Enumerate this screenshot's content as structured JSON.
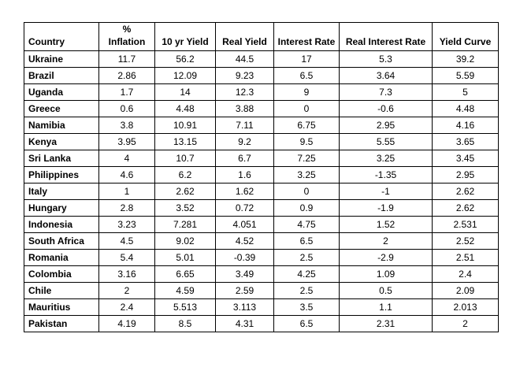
{
  "accent_colors": {
    "border": "#000000",
    "text": "#000000",
    "background": "#ffffff"
  },
  "table": {
    "headers": [
      "Country",
      "%\nInflation",
      "10 yr Yield",
      "Real Yield",
      "Interest Rate",
      "Real Interest Rate",
      "Yield Curve"
    ]
  },
  "chart_data": {
    "type": "table",
    "columns": [
      "Country",
      "% Inflation",
      "10 yr Yield",
      "Real Yield",
      "Interest Rate",
      "Real Interest Rate",
      "Yield Curve"
    ],
    "rows": [
      [
        "Ukraine",
        "11.7",
        "56.2",
        "44.5",
        "17",
        "5.3",
        "39.2"
      ],
      [
        "Brazil",
        "2.86",
        "12.09",
        "9.23",
        "6.5",
        "3.64",
        "5.59"
      ],
      [
        "Uganda",
        "1.7",
        "14",
        "12.3",
        "9",
        "7.3",
        "5"
      ],
      [
        "Greece",
        "0.6",
        "4.48",
        "3.88",
        "0",
        "-0.6",
        "4.48"
      ],
      [
        "Namibia",
        "3.8",
        "10.91",
        "7.11",
        "6.75",
        "2.95",
        "4.16"
      ],
      [
        "Kenya",
        "3.95",
        "13.15",
        "9.2",
        "9.5",
        "5.55",
        "3.65"
      ],
      [
        "Sri Lanka",
        "4",
        "10.7",
        "6.7",
        "7.25",
        "3.25",
        "3.45"
      ],
      [
        "Philippines",
        "4.6",
        "6.2",
        "1.6",
        "3.25",
        "-1.35",
        "2.95"
      ],
      [
        "Italy",
        "1",
        "2.62",
        "1.62",
        "0",
        "-1",
        "2.62"
      ],
      [
        "Hungary",
        "2.8",
        "3.52",
        "0.72",
        "0.9",
        "-1.9",
        "2.62"
      ],
      [
        "Indonesia",
        "3.23",
        "7.281",
        "4.051",
        "4.75",
        "1.52",
        "2.531"
      ],
      [
        "South Africa",
        "4.5",
        "9.02",
        "4.52",
        "6.5",
        "2",
        "2.52"
      ],
      [
        "Romania",
        "5.4",
        "5.01",
        "-0.39",
        "2.5",
        "-2.9",
        "2.51"
      ],
      [
        "Colombia",
        "3.16",
        "6.65",
        "3.49",
        "4.25",
        "1.09",
        "2.4"
      ],
      [
        "Chile",
        "2",
        "4.59",
        "2.59",
        "2.5",
        "0.5",
        "2.09"
      ],
      [
        "Mauritius",
        "2.4",
        "5.513",
        "3.113",
        "3.5",
        "1.1",
        "2.013"
      ],
      [
        "Pakistan",
        "4.19",
        "8.5",
        "4.31",
        "6.5",
        "2.31",
        "2"
      ]
    ]
  }
}
